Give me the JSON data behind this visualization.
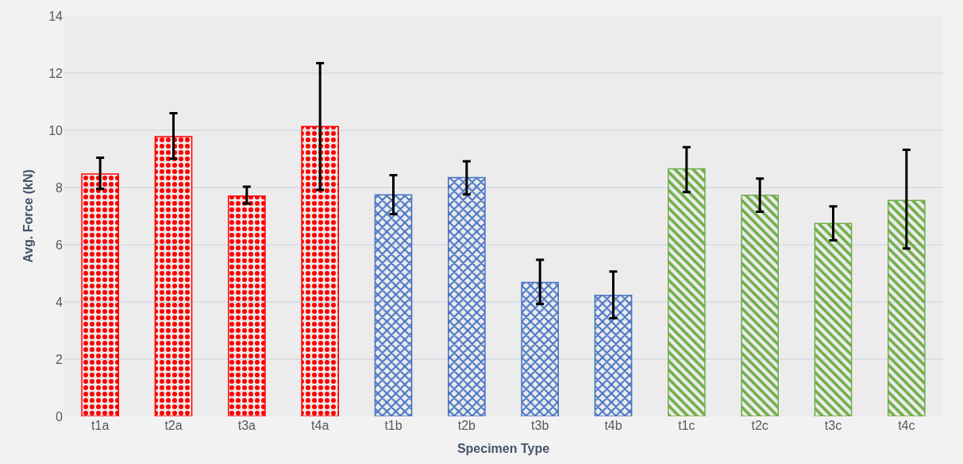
{
  "chart_data": {
    "type": "bar",
    "xlabel": "Specimen Type",
    "ylabel": "Avg. Force (kN)",
    "categories": [
      "t1a",
      "t2a",
      "t3a",
      "t4a",
      "t1b",
      "t2b",
      "t3b",
      "t4b",
      "t1c",
      "t2c",
      "t3c",
      "t4c"
    ],
    "values": [
      8.47,
      9.78,
      7.7,
      10.13,
      7.74,
      8.35,
      4.68,
      4.23,
      8.65,
      7.73,
      6.74,
      7.55
    ],
    "errors": [
      [
        7.95,
        9.04
      ],
      [
        9.01,
        10.6
      ],
      [
        7.44,
        8.03
      ],
      [
        7.92,
        12.35
      ],
      [
        7.07,
        8.43
      ],
      [
        7.76,
        8.92
      ],
      [
        3.93,
        5.47
      ],
      [
        3.43,
        5.06
      ],
      [
        7.84,
        9.41
      ],
      [
        7.15,
        8.31
      ],
      [
        6.15,
        7.34
      ],
      [
        5.87,
        9.32
      ]
    ],
    "colors": [
      "#ff0000",
      "#ff0000",
      "#ff0000",
      "#ff0000",
      "#4472c4",
      "#4472c4",
      "#4472c4",
      "#4472c4",
      "#70ad47",
      "#70ad47",
      "#70ad47",
      "#70ad47"
    ],
    "ylim": [
      0,
      14
    ],
    "yticks": [
      0,
      2,
      4,
      6,
      8,
      10,
      12,
      14
    ],
    "grid": "y"
  }
}
